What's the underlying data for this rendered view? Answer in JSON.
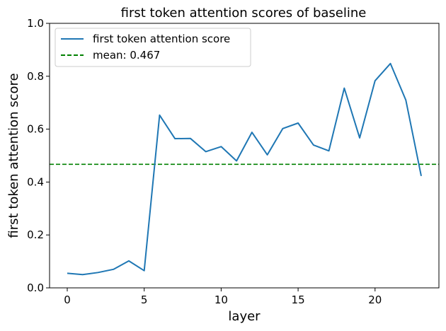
{
  "chart_data": {
    "type": "line",
    "title": "first token attention scores of baseline",
    "xlabel": "layer",
    "ylabel": "first token attention score",
    "xlim": [
      -1.15,
      24.15
    ],
    "ylim": [
      0.0,
      1.0
    ],
    "xticks": [
      0,
      5,
      10,
      15,
      20
    ],
    "yticks": [
      0.0,
      0.2,
      0.4,
      0.6,
      0.8,
      1.0
    ],
    "xtick_labels": [
      "0",
      "5",
      "10",
      "15",
      "20"
    ],
    "ytick_labels": [
      "0.0",
      "0.2",
      "0.4",
      "0.6",
      "0.8",
      "1.0"
    ],
    "grid": false,
    "legend_position": "top-left",
    "series": [
      {
        "name": "first token attention score",
        "color": "#1f77b4",
        "style": "solid",
        "x": [
          0,
          1,
          2,
          3,
          4,
          5,
          6,
          7,
          8,
          9,
          10,
          11,
          12,
          13,
          14,
          15,
          16,
          17,
          18,
          19,
          20,
          21,
          22,
          23
        ],
        "values": [
          0.055,
          0.05,
          0.058,
          0.07,
          0.102,
          0.065,
          0.653,
          0.564,
          0.565,
          0.515,
          0.534,
          0.48,
          0.588,
          0.503,
          0.602,
          0.623,
          0.54,
          0.518,
          0.755,
          0.567,
          0.783,
          0.848,
          0.71,
          0.423
        ]
      }
    ],
    "hlines": [
      {
        "name": "mean: 0.467",
        "value": 0.467,
        "color": "#008000",
        "style": "dashed"
      }
    ]
  }
}
